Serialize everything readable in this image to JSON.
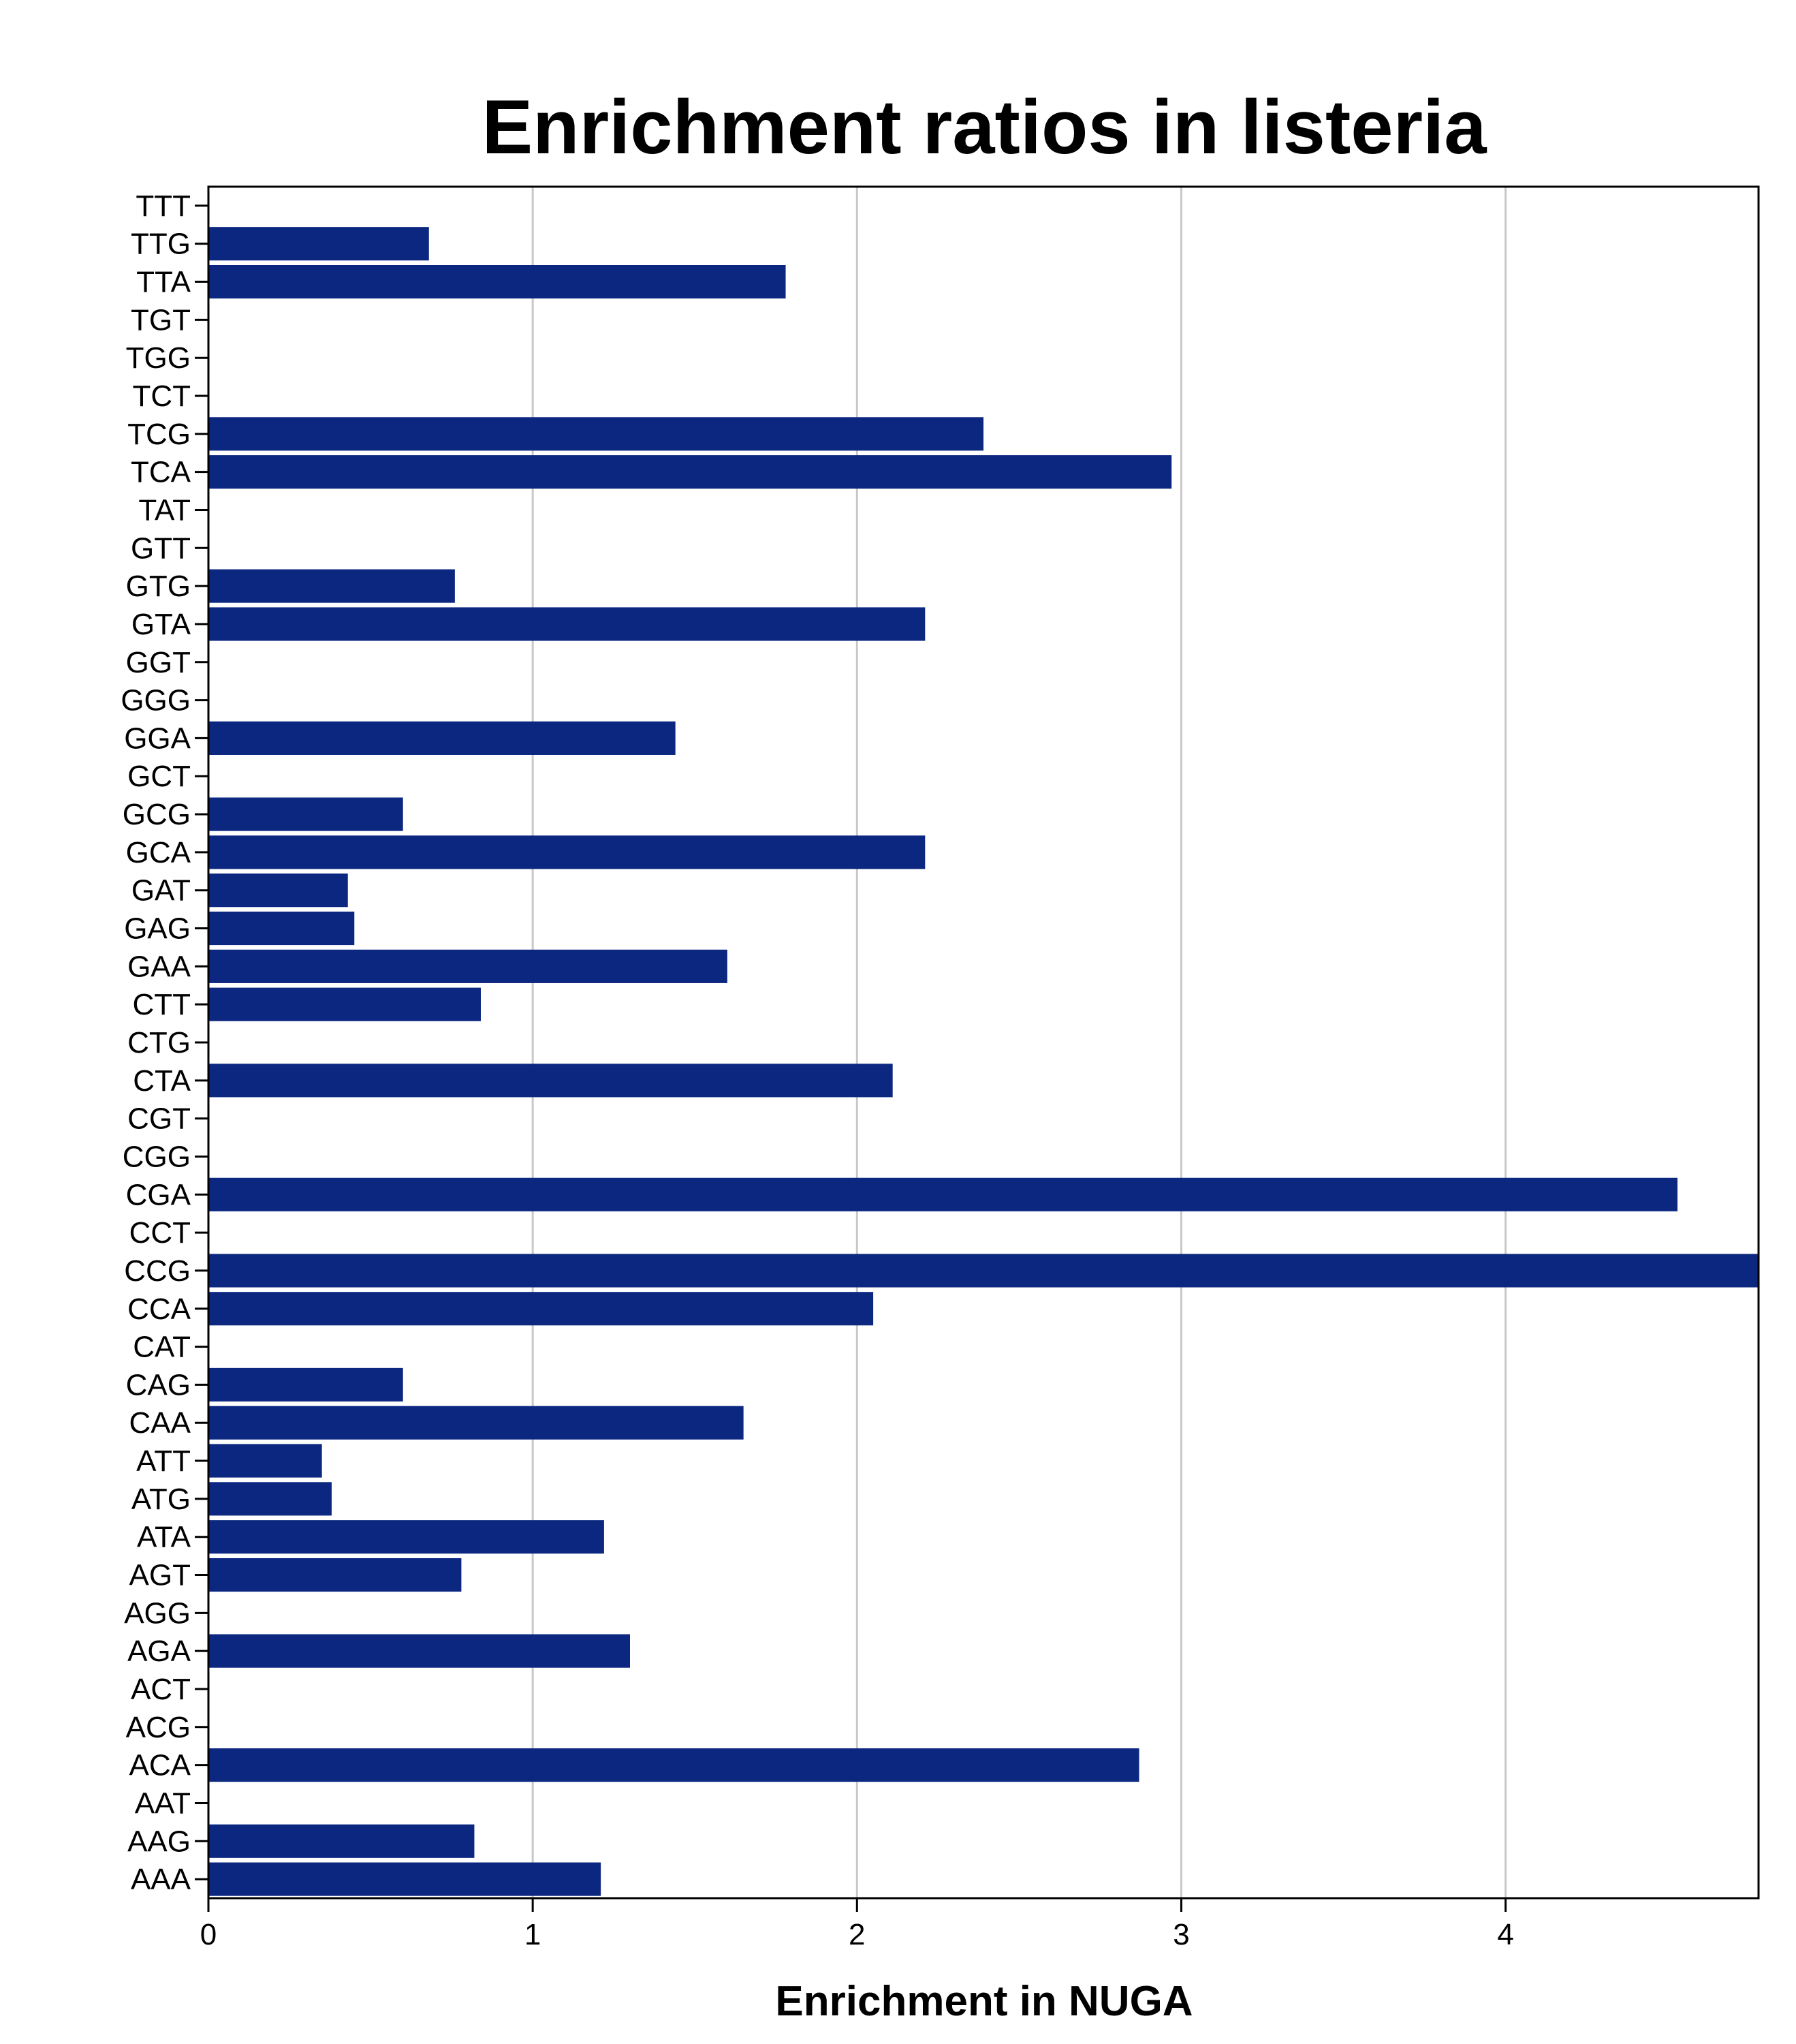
{
  "chart_data": {
    "type": "bar",
    "orientation": "horizontal",
    "title": "Enrichment ratios in listeria",
    "xlabel": "Enrichment in NUGA",
    "ylabel": "",
    "xlim": [
      0,
      4.78
    ],
    "x_ticks": [
      "0",
      "1",
      "2",
      "3",
      "4"
    ],
    "x_grid": true,
    "bar_color": "#0b2780",
    "categories": [
      "AAA",
      "AAG",
      "AAT",
      "ACA",
      "ACG",
      "ACT",
      "AGA",
      "AGG",
      "AGT",
      "ATA",
      "ATG",
      "ATT",
      "CAA",
      "CAG",
      "CAT",
      "CCA",
      "CCG",
      "CCT",
      "CGA",
      "CGG",
      "CGT",
      "CTA",
      "CTG",
      "CTT",
      "GAA",
      "GAG",
      "GAT",
      "GCA",
      "GCG",
      "GCT",
      "GGA",
      "GGG",
      "GGT",
      "GTA",
      "GTG",
      "GTT",
      "TAT",
      "TCA",
      "TCG",
      "TCT",
      "TGG",
      "TGT",
      "TTA",
      "TTG",
      "TTT"
    ],
    "values": [
      1.21,
      0.82,
      0,
      2.87,
      0,
      0,
      1.3,
      0,
      0.78,
      1.22,
      0.38,
      0.35,
      1.65,
      0.6,
      0,
      2.05,
      4.78,
      0,
      4.53,
      0,
      0,
      2.11,
      0,
      0.84,
      1.6,
      0.45,
      0.43,
      2.21,
      0.6,
      0,
      1.44,
      0,
      0,
      2.21,
      0.76,
      0,
      0,
      2.97,
      2.39,
      0,
      0,
      0,
      1.78,
      0.68,
      0
    ]
  }
}
